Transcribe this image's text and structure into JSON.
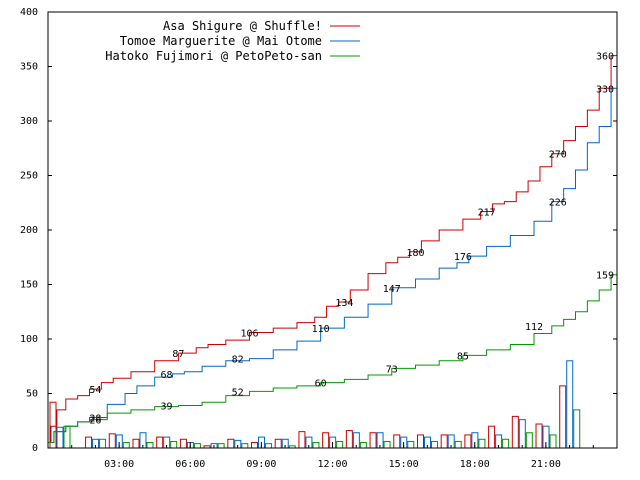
{
  "chart_data": {
    "type": "line",
    "xlim": [
      0,
      24
    ],
    "ylim": [
      0,
      400
    ],
    "y_ticks": [
      0,
      50,
      100,
      150,
      200,
      250,
      300,
      350,
      400
    ],
    "x_ticks": [
      {
        "hour": 3,
        "label": "03:00"
      },
      {
        "hour": 6,
        "label": "06:00"
      },
      {
        "hour": 9,
        "label": "09:00"
      },
      {
        "hour": 12,
        "label": "12:00"
      },
      {
        "hour": 15,
        "label": "15:00"
      },
      {
        "hour": 18,
        "label": "18:00"
      },
      {
        "hour": 21,
        "label": "21:00"
      }
    ],
    "grid": false,
    "legend_position": "top-right",
    "series": [
      {
        "name": "Asa Shigure @ Shuffle!",
        "color": "#cc0000",
        "points": [
          [
            0,
            5
          ],
          [
            0.25,
            20
          ],
          [
            0.5,
            35
          ],
          [
            1,
            45
          ],
          [
            1.5,
            48
          ],
          [
            2,
            54
          ],
          [
            2.5,
            60
          ],
          [
            3,
            64
          ],
          [
            4,
            70
          ],
          [
            5,
            80
          ],
          [
            6,
            87
          ],
          [
            6.5,
            92
          ],
          [
            7,
            95
          ],
          [
            8,
            99
          ],
          [
            9,
            106
          ],
          [
            10,
            110
          ],
          [
            11,
            115
          ],
          [
            11.5,
            120
          ],
          [
            12,
            130
          ],
          [
            12.5,
            134
          ],
          [
            13,
            145
          ],
          [
            14,
            160
          ],
          [
            14.5,
            170
          ],
          [
            15,
            175
          ],
          [
            15.5,
            180
          ],
          [
            16,
            190
          ],
          [
            17,
            200
          ],
          [
            18,
            210
          ],
          [
            18.5,
            217
          ],
          [
            19,
            224
          ],
          [
            19.5,
            226
          ],
          [
            20,
            235
          ],
          [
            20.5,
            245
          ],
          [
            21,
            258
          ],
          [
            21.5,
            270
          ],
          [
            22,
            282
          ],
          [
            22.5,
            295
          ],
          [
            23,
            310
          ],
          [
            23.5,
            330
          ],
          [
            24,
            360
          ]
        ],
        "labels": [
          {
            "hour": 2,
            "value": 54,
            "text": "54"
          },
          {
            "hour": 5.5,
            "value": 87,
            "text": "87"
          },
          {
            "hour": 8.5,
            "value": 106,
            "text": "106"
          },
          {
            "hour": 12.5,
            "value": 134,
            "text": "134"
          },
          {
            "hour": 15.5,
            "value": 180,
            "text": "180"
          },
          {
            "hour": 18.5,
            "value": 217,
            "text": "217"
          },
          {
            "hour": 21.5,
            "value": 270,
            "text": "270"
          },
          {
            "hour": 24,
            "value": 360,
            "text": "360"
          }
        ]
      },
      {
        "name": "Tomoe Marguerite @ Mai Otome",
        "color": "#0066cc",
        "points": [
          [
            0,
            5
          ],
          [
            0.5,
            15
          ],
          [
            1,
            20
          ],
          [
            1.5,
            24
          ],
          [
            2,
            28
          ],
          [
            3,
            40
          ],
          [
            3.5,
            50
          ],
          [
            4,
            57
          ],
          [
            5,
            65
          ],
          [
            5.5,
            68
          ],
          [
            6,
            70
          ],
          [
            7,
            75
          ],
          [
            8,
            80
          ],
          [
            9,
            82
          ],
          [
            10,
            90
          ],
          [
            11,
            98
          ],
          [
            12,
            110
          ],
          [
            13,
            120
          ],
          [
            14,
            132
          ],
          [
            15,
            147
          ],
          [
            16,
            155
          ],
          [
            17,
            165
          ],
          [
            17.5,
            170
          ],
          [
            18,
            176
          ],
          [
            19,
            185
          ],
          [
            20,
            195
          ],
          [
            21,
            208
          ],
          [
            21.5,
            226
          ],
          [
            22,
            238
          ],
          [
            22.5,
            255
          ],
          [
            23,
            280
          ],
          [
            23.5,
            295
          ],
          [
            24,
            330
          ]
        ],
        "labels": [
          {
            "hour": 2,
            "value": 28,
            "text": "28"
          },
          {
            "hour": 5,
            "value": 68,
            "text": "68"
          },
          {
            "hour": 8,
            "value": 82,
            "text": "82"
          },
          {
            "hour": 11.5,
            "value": 110,
            "text": "110"
          },
          {
            "hour": 14.5,
            "value": 147,
            "text": "147"
          },
          {
            "hour": 17.5,
            "value": 176,
            "text": "176"
          },
          {
            "hour": 21.5,
            "value": 226,
            "text": "226"
          },
          {
            "hour": 23.5,
            "value": 330,
            "text": "330"
          }
        ]
      },
      {
        "name": "Hatoko Fujimori @ PetoPeto-san",
        "color": "#009900",
        "points": [
          [
            0,
            5
          ],
          [
            0.5,
            15
          ],
          [
            1,
            20
          ],
          [
            1.5,
            24
          ],
          [
            2,
            26
          ],
          [
            3,
            32
          ],
          [
            4,
            35
          ],
          [
            5,
            38
          ],
          [
            6,
            39
          ],
          [
            7,
            42
          ],
          [
            8,
            48
          ],
          [
            9,
            52
          ],
          [
            10,
            55
          ],
          [
            11,
            57
          ],
          [
            12,
            60
          ],
          [
            13,
            63
          ],
          [
            14,
            67
          ],
          [
            15,
            73
          ],
          [
            16,
            76
          ],
          [
            17,
            80
          ],
          [
            18,
            85
          ],
          [
            19,
            90
          ],
          [
            20,
            95
          ],
          [
            21,
            105
          ],
          [
            21.5,
            112
          ],
          [
            22,
            118
          ],
          [
            22.5,
            125
          ],
          [
            23,
            135
          ],
          [
            23.5,
            145
          ],
          [
            24,
            159
          ]
        ],
        "labels": [
          {
            "hour": 2,
            "value": 26,
            "text": "26"
          },
          {
            "hour": 5,
            "value": 39,
            "text": "39"
          },
          {
            "hour": 8,
            "value": 52,
            "text": "52"
          },
          {
            "hour": 11.5,
            "value": 60,
            "text": "60"
          },
          {
            "hour": 14.5,
            "value": 73,
            "text": "73"
          },
          {
            "hour": 17.5,
            "value": 85,
            "text": "85"
          },
          {
            "hour": 20.5,
            "value": 112,
            "text": "112"
          },
          {
            "hour": 23.5,
            "value": 159,
            "text": "159"
          }
        ]
      }
    ],
    "hourly_bars": [
      [
        42,
        19,
        20
      ],
      [
        10,
        8,
        8
      ],
      [
        13,
        12,
        5
      ],
      [
        8,
        14,
        5
      ],
      [
        10,
        10,
        6
      ],
      [
        8,
        5,
        4
      ],
      [
        2,
        4,
        4
      ],
      [
        8,
        7,
        4
      ],
      [
        5,
        10,
        4
      ],
      [
        8,
        8,
        2
      ],
      [
        15,
        10,
        5
      ],
      [
        14,
        10,
        6
      ],
      [
        16,
        14,
        5
      ],
      [
        14,
        14,
        6
      ],
      [
        12,
        10,
        6
      ],
      [
        12,
        10,
        6
      ],
      [
        12,
        12,
        6
      ],
      [
        12,
        14,
        8
      ],
      [
        20,
        12,
        8
      ],
      [
        29,
        26,
        14
      ],
      [
        22,
        20,
        12
      ],
      [
        57,
        80,
        35
      ]
    ]
  },
  "legend": {
    "entries": [
      {
        "label": "Asa Shigure @ Shuffle!",
        "color": "#cc0000"
      },
      {
        "label": "Tomoe Marguerite @ Mai Otome",
        "color": "#0066cc"
      },
      {
        "label": "Hatoko Fujimori @ PetoPeto-san",
        "color": "#009900"
      }
    ]
  }
}
